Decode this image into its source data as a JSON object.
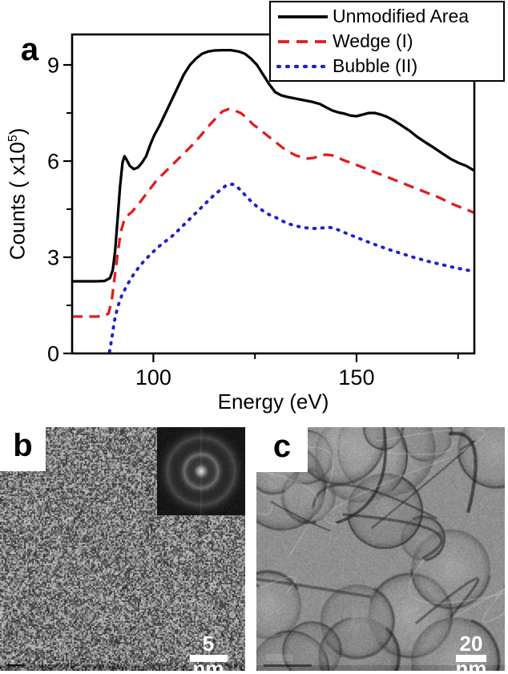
{
  "panel_a": {
    "label": "a"
  },
  "chart_data": {
    "type": "line",
    "title": "",
    "xlabel": "Energy (eV)",
    "ylabel_parts": {
      "prefix": "Counts ( x10",
      "sup": "5",
      "suffix": ")"
    },
    "xlim": [
      80,
      179
    ],
    "ylim": [
      0,
      9.95
    ],
    "x_major_ticks": [
      100,
      150
    ],
    "x_minor_ticks": [
      125,
      175
    ],
    "y_major_ticks": [
      0,
      3,
      6,
      9
    ],
    "y_minor_ticks": [
      1.5,
      4.5,
      7.5
    ],
    "grid": false,
    "legend_position": "top-right",
    "series": [
      {
        "name": "Unmodified Area",
        "color": "#000000",
        "style": "solid",
        "points": [
          [
            80,
            2.25
          ],
          [
            83,
            2.25
          ],
          [
            86,
            2.25
          ],
          [
            88,
            2.26
          ],
          [
            89.3,
            2.35
          ],
          [
            90,
            2.6
          ],
          [
            90.6,
            3.2
          ],
          [
            91.2,
            4.2
          ],
          [
            91.8,
            5.2
          ],
          [
            92.4,
            5.95
          ],
          [
            92.9,
            6.15
          ],
          [
            93.4,
            6.05
          ],
          [
            94.2,
            5.85
          ],
          [
            95.2,
            5.75
          ],
          [
            96.2,
            5.8
          ],
          [
            97.2,
            5.95
          ],
          [
            98.2,
            6.15
          ],
          [
            99.2,
            6.5
          ],
          [
            100.2,
            6.8
          ],
          [
            101.5,
            7.1
          ],
          [
            103,
            7.5
          ],
          [
            104.5,
            7.9
          ],
          [
            106,
            8.3
          ],
          [
            107.5,
            8.7
          ],
          [
            109,
            9.0
          ],
          [
            110.5,
            9.2
          ],
          [
            112,
            9.35
          ],
          [
            113.5,
            9.42
          ],
          [
            115,
            9.45
          ],
          [
            117,
            9.46
          ],
          [
            119,
            9.46
          ],
          [
            121,
            9.42
          ],
          [
            122.5,
            9.35
          ],
          [
            124,
            9.2
          ],
          [
            125.5,
            9.0
          ],
          [
            127,
            8.7
          ],
          [
            128.5,
            8.4
          ],
          [
            130,
            8.15
          ],
          [
            131.5,
            8.05
          ],
          [
            133,
            8.0
          ],
          [
            135,
            7.95
          ],
          [
            137,
            7.9
          ],
          [
            139,
            7.85
          ],
          [
            141,
            7.78
          ],
          [
            142.5,
            7.68
          ],
          [
            144,
            7.58
          ],
          [
            145.5,
            7.52
          ],
          [
            147,
            7.48
          ],
          [
            148.5,
            7.42
          ],
          [
            150,
            7.4
          ],
          [
            151.5,
            7.45
          ],
          [
            153,
            7.5
          ],
          [
            154.5,
            7.5
          ],
          [
            156,
            7.45
          ],
          [
            157.5,
            7.38
          ],
          [
            159,
            7.28
          ],
          [
            161,
            7.12
          ],
          [
            163,
            6.95
          ],
          [
            165,
            6.75
          ],
          [
            167,
            6.58
          ],
          [
            169,
            6.42
          ],
          [
            171,
            6.25
          ],
          [
            173,
            6.08
          ],
          [
            175,
            5.95
          ],
          [
            177,
            5.85
          ],
          [
            179,
            5.7
          ]
        ]
      },
      {
        "name": "Wedge (I)",
        "color": "#e31b1d",
        "style": "dashed",
        "points": [
          [
            80,
            1.15
          ],
          [
            83,
            1.15
          ],
          [
            86,
            1.15
          ],
          [
            88,
            1.17
          ],
          [
            89,
            1.25
          ],
          [
            89.8,
            1.7
          ],
          [
            90.5,
            2.4
          ],
          [
            91.2,
            3.1
          ],
          [
            92,
            3.8
          ],
          [
            92.8,
            4.15
          ],
          [
            93.6,
            4.3
          ],
          [
            94.6,
            4.4
          ],
          [
            96,
            4.6
          ],
          [
            97.5,
            4.85
          ],
          [
            99,
            5.1
          ],
          [
            100.5,
            5.35
          ],
          [
            102,
            5.55
          ],
          [
            104,
            5.8
          ],
          [
            106,
            6.05
          ],
          [
            108,
            6.3
          ],
          [
            110,
            6.55
          ],
          [
            112,
            6.85
          ],
          [
            114,
            7.15
          ],
          [
            115.5,
            7.35
          ],
          [
            117,
            7.55
          ],
          [
            118.5,
            7.62
          ],
          [
            120,
            7.58
          ],
          [
            121.5,
            7.5
          ],
          [
            123,
            7.35
          ],
          [
            124.5,
            7.15
          ],
          [
            126,
            7.0
          ],
          [
            127.5,
            6.85
          ],
          [
            129,
            6.7
          ],
          [
            130.5,
            6.55
          ],
          [
            132,
            6.4
          ],
          [
            133.5,
            6.28
          ],
          [
            135,
            6.18
          ],
          [
            136.5,
            6.12
          ],
          [
            138,
            6.08
          ],
          [
            139.5,
            6.1
          ],
          [
            141,
            6.17
          ],
          [
            142.5,
            6.2
          ],
          [
            144,
            6.18
          ],
          [
            145.5,
            6.1
          ],
          [
            147,
            6.02
          ],
          [
            148.5,
            5.95
          ],
          [
            150,
            5.88
          ],
          [
            152,
            5.78
          ],
          [
            154,
            5.68
          ],
          [
            156,
            5.58
          ],
          [
            158,
            5.48
          ],
          [
            160,
            5.38
          ],
          [
            162,
            5.28
          ],
          [
            164,
            5.18
          ],
          [
            166,
            5.08
          ],
          [
            168,
            4.98
          ],
          [
            170,
            4.88
          ],
          [
            172,
            4.76
          ],
          [
            174,
            4.64
          ],
          [
            176,
            4.54
          ],
          [
            178,
            4.44
          ],
          [
            179,
            4.38
          ]
        ]
      },
      {
        "name": "Bubble (II)",
        "color": "#2020cf",
        "style": "dotted",
        "points": [
          [
            89.2,
            0.05
          ],
          [
            89.8,
            0.5
          ],
          [
            90.4,
            1.0
          ],
          [
            91.2,
            1.45
          ],
          [
            92.2,
            1.8
          ],
          [
            93.4,
            2.1
          ],
          [
            94.8,
            2.4
          ],
          [
            96.2,
            2.65
          ],
          [
            97.8,
            2.9
          ],
          [
            99.4,
            3.1
          ],
          [
            101,
            3.3
          ],
          [
            103,
            3.5
          ],
          [
            105,
            3.7
          ],
          [
            107,
            3.95
          ],
          [
            109,
            4.2
          ],
          [
            111,
            4.45
          ],
          [
            113,
            4.7
          ],
          [
            115,
            4.95
          ],
          [
            116.5,
            5.1
          ],
          [
            118,
            5.25
          ],
          [
            119.5,
            5.28
          ],
          [
            121,
            5.15
          ],
          [
            122.5,
            4.95
          ],
          [
            124,
            4.75
          ],
          [
            125.5,
            4.58
          ],
          [
            127,
            4.45
          ],
          [
            128.5,
            4.33
          ],
          [
            130,
            4.25
          ],
          [
            131.5,
            4.15
          ],
          [
            133,
            4.05
          ],
          [
            134.5,
            4.0
          ],
          [
            136,
            3.95
          ],
          [
            137.5,
            3.92
          ],
          [
            139,
            3.9
          ],
          [
            140.5,
            3.9
          ],
          [
            142,
            3.92
          ],
          [
            143.5,
            3.93
          ],
          [
            145,
            3.88
          ],
          [
            146.5,
            3.8
          ],
          [
            148,
            3.72
          ],
          [
            150,
            3.62
          ],
          [
            152,
            3.52
          ],
          [
            154,
            3.42
          ],
          [
            156,
            3.33
          ],
          [
            158,
            3.24
          ],
          [
            160,
            3.16
          ],
          [
            162,
            3.08
          ],
          [
            164,
            3.0
          ],
          [
            166,
            2.93
          ],
          [
            168,
            2.86
          ],
          [
            170,
            2.8
          ],
          [
            172,
            2.74
          ],
          [
            174,
            2.68
          ],
          [
            176,
            2.63
          ],
          [
            178,
            2.58
          ],
          [
            179,
            2.55
          ]
        ]
      }
    ]
  },
  "panel_b": {
    "label": "b",
    "scale_bar": "5 nm"
  },
  "panel_c": {
    "label": "c",
    "scale_bar": "20 nm"
  }
}
